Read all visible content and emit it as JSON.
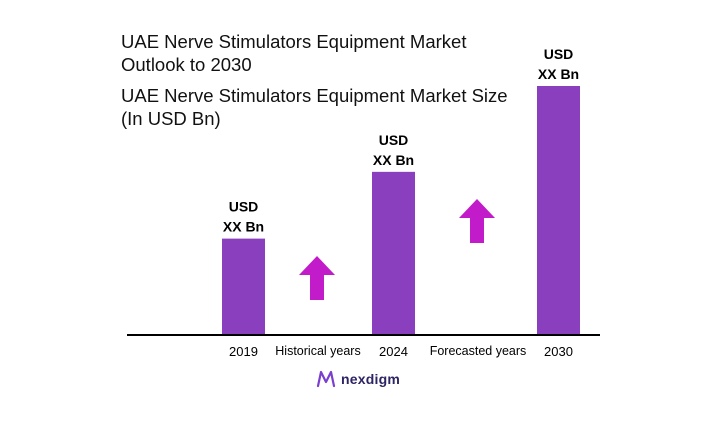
{
  "header": {
    "title_line1": "UAE Nerve Stimulators Equipment Market",
    "title_line2": "Outlook to 2030",
    "subtitle_line1": "UAE Nerve Stimulators Equipment Market Size",
    "subtitle_line2": "(In USD Bn)"
  },
  "chart_data": {
    "type": "bar",
    "categories": [
      "2019",
      "2024",
      "2030"
    ],
    "values": [
      1.0,
      1.7,
      2.6
    ],
    "value_note": "relative bar heights; actual values not shown",
    "data_labels": [
      [
        "USD",
        "XX Bn"
      ],
      [
        "USD",
        "XX Bn"
      ],
      [
        "USD",
        "XX Bn"
      ]
    ],
    "annotations": [
      "Historical years",
      "Forecasted years"
    ],
    "bar_color": "#8a3fbf",
    "arrow_color": "#c21bc9",
    "grid": false,
    "legend": "none"
  },
  "branding": {
    "logo_text": "nexdigm",
    "logo_icon": "nexdigm-logo-icon"
  }
}
